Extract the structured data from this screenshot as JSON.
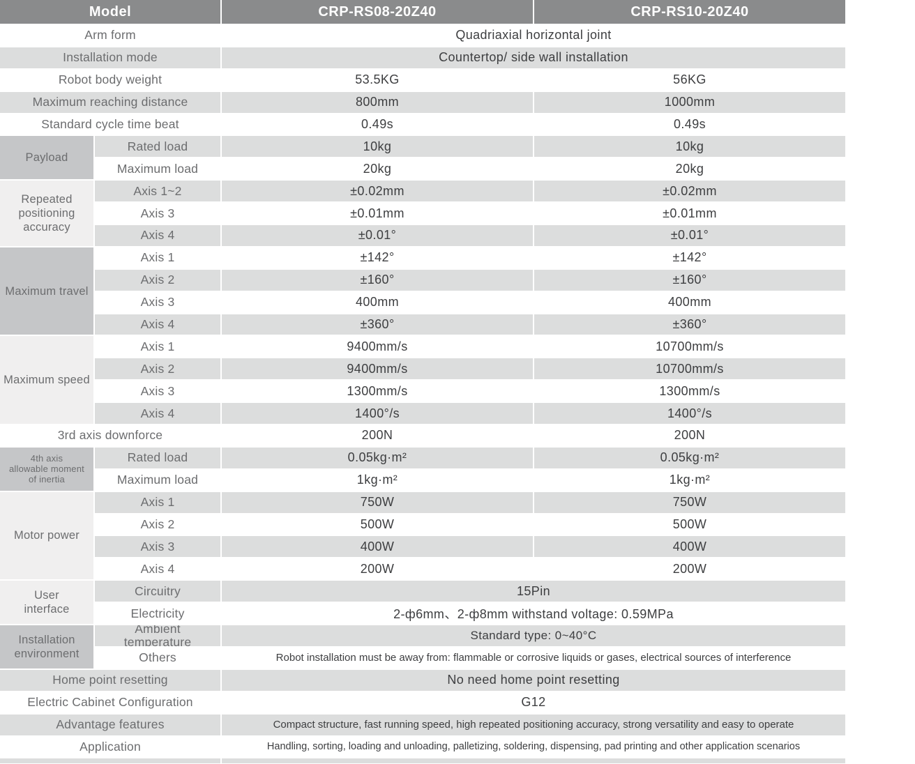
{
  "colors": {
    "header_bg": "#8a8b8c",
    "stripe_gray": "#dcdddd",
    "group_cell_dark": "#c5c6c8",
    "group_cell_light": "#f0efef",
    "label_text": "#6c6d6f",
    "value_text": "#3d3e40"
  },
  "header": {
    "model": "Model",
    "model_a": "CRP-RS08-20Z40",
    "model_b": "CRP-RS10-20Z40"
  },
  "groups": {
    "payload": "Payload",
    "repeat": "Repeated\npositioning\naccuracy",
    "travel": "Maximum travel",
    "speed": "Maximum speed",
    "inertia": "4th axis\nallowable moment\nof inertia",
    "motor": "Motor power",
    "user": "User\ninterface",
    "env": "Installation\nenvironment"
  },
  "rows": [
    {
      "label": "Arm form",
      "value": "Quadriaxial horizontal joint"
    },
    {
      "label": "Installation mode",
      "value": "Countertop/ side wall installation"
    },
    {
      "label": "Robot body weight",
      "v1": "53.5KG",
      "v2": "56KG"
    },
    {
      "label": "Maximum reaching distance",
      "v1": "800mm",
      "v2": "1000mm"
    },
    {
      "label": "Standard cycle time beat",
      "v1": "0.49s",
      "v2": "0.49s"
    },
    {
      "label": "Rated load",
      "v1": "10kg",
      "v2": "10kg"
    },
    {
      "label": "Maximum load",
      "v1": "20kg",
      "v2": "20kg"
    },
    {
      "label": "Axis 1~2",
      "v1": "±0.02mm",
      "v2": "±0.02mm"
    },
    {
      "label": "Axis 3",
      "v1": "±0.01mm",
      "v2": "±0.01mm"
    },
    {
      "label": "Axis 4",
      "v1": "±0.01°",
      "v2": "±0.01°"
    },
    {
      "label": "Axis 1",
      "v1": "±142°",
      "v2": "±142°"
    },
    {
      "label": "Axis 2",
      "v1": "±160°",
      "v2": "±160°"
    },
    {
      "label": "Axis 3",
      "v1": "400mm",
      "v2": "400mm"
    },
    {
      "label": "Axis 4",
      "v1": "±360°",
      "v2": "±360°"
    },
    {
      "label": "Axis 1",
      "v1": "9400mm/s",
      "v2": "10700mm/s"
    },
    {
      "label": "Axis 2",
      "v1": "9400mm/s",
      "v2": "10700mm/s"
    },
    {
      "label": "Axis 3",
      "v1": "1300mm/s",
      "v2": "1300mm/s"
    },
    {
      "label": "Axis 4",
      "v1": "1400°/s",
      "v2": "1400°/s"
    },
    {
      "label": "3rd axis downforce",
      "v1": "200N",
      "v2": "200N"
    },
    {
      "label": "Rated load",
      "v1": "0.05kg·m²",
      "v2": "0.05kg·m²"
    },
    {
      "label": "Maximum load",
      "v1": "1kg·m²",
      "v2": "1kg·m²"
    },
    {
      "label": "Axis 1",
      "v1": "750W",
      "v2": "750W"
    },
    {
      "label": "Axis 2",
      "v1": "500W",
      "v2": "500W"
    },
    {
      "label": "Axis 3",
      "v1": "400W",
      "v2": "400W"
    },
    {
      "label": "Axis 4",
      "v1": "200W",
      "v2": "200W"
    },
    {
      "label": "Circuitry",
      "value": "15Pin"
    },
    {
      "label": "Electricity",
      "value": "2-ф6mm、2-ф8mm withstand voltage: 0.59MPa"
    },
    {
      "label": "Ambient\ntemperature",
      "value": "Standard type: 0~40°C"
    },
    {
      "label": "Others",
      "value": "Robot installation must be away from: flammable or corrosive liquids or gases, electrical sources of interference"
    },
    {
      "label": "Home point resetting",
      "value": "No need home point resetting"
    },
    {
      "label": "Electric Cabinet Configuration",
      "value": "G12"
    },
    {
      "label": "Advantage features",
      "value": "Compact structure, fast running speed, high repeated positioning accuracy, strong versatility and easy to operate"
    },
    {
      "label": "Application",
      "value": "Handling, sorting, loading and unloading, palletizing, soldering, dispensing, pad printing and other application scenarios"
    }
  ]
}
